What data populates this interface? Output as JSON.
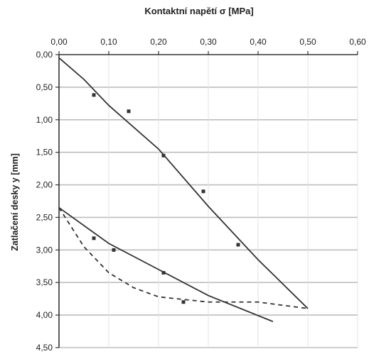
{
  "chart_data": {
    "type": "line",
    "title": "Kontaktní napětí σ [MPa]",
    "xlabel": "Kontaktní napětí σ [MPa]",
    "ylabel": "Zatlačení desky y [mm]",
    "x_axis_position": "top",
    "y_axis_inverted": true,
    "xlim": [
      0,
      0.6
    ],
    "ylim": [
      0,
      4.5
    ],
    "x_ticks": [
      "0,00",
      "0,10",
      "0,20",
      "0,30",
      "0,40",
      "0,50",
      "0,60"
    ],
    "y_ticks": [
      "0,00",
      "0,50",
      "1,00",
      "1,50",
      "2,00",
      "2,50",
      "3,00",
      "3,50",
      "4,00",
      "4,50"
    ],
    "grid": "horizontal",
    "legend": "none",
    "series": [
      {
        "style": "solid",
        "x": [
          0.0,
          0.05,
          0.1,
          0.2,
          0.3,
          0.4,
          0.5
        ],
        "y": [
          0.05,
          0.38,
          0.78,
          1.45,
          2.33,
          3.15,
          3.9
        ]
      },
      {
        "style": "markers",
        "x": [
          0.07,
          0.14,
          0.21,
          0.29,
          0.36
        ],
        "y": [
          0.62,
          0.87,
          1.55,
          2.1,
          2.92
        ]
      },
      {
        "style": "solid",
        "x": [
          0.0,
          0.1,
          0.2,
          0.3,
          0.43
        ],
        "y": [
          2.35,
          2.9,
          3.3,
          3.7,
          4.1
        ]
      },
      {
        "style": "dashed",
        "x": [
          0.0,
          0.05,
          0.1,
          0.15,
          0.2,
          0.3,
          0.4,
          0.5
        ],
        "y": [
          2.35,
          2.95,
          3.35,
          3.58,
          3.72,
          3.8,
          3.8,
          3.9
        ]
      },
      {
        "style": "markers",
        "x": [
          0.07,
          0.11,
          0.21,
          0.25
        ],
        "y": [
          2.82,
          3.0,
          3.35,
          3.8
        ]
      }
    ]
  }
}
